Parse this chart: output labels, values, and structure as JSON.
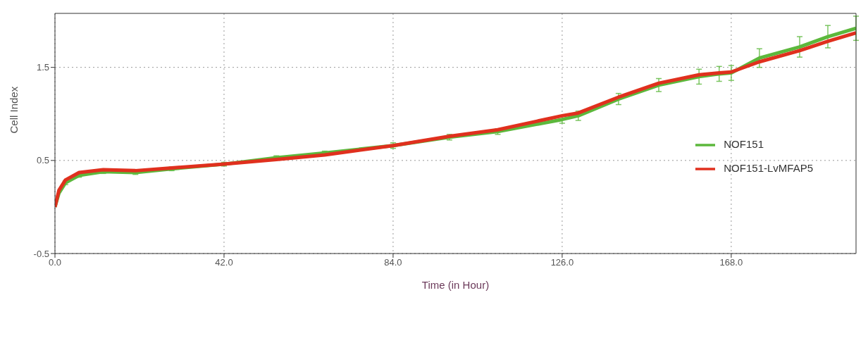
{
  "chart_data": {
    "type": "line",
    "xlabel": "Time (in Hour)",
    "ylabel": "Cell Index",
    "xlim": [
      0,
      199
    ],
    "ylim": [
      -0.5,
      2.08
    ],
    "xticks": [
      {
        "value": 0,
        "label": "0.0"
      },
      {
        "value": 42,
        "label": "42.0"
      },
      {
        "value": 84,
        "label": "84.0"
      },
      {
        "value": 126,
        "label": "126.0"
      },
      {
        "value": 168,
        "label": "168.0"
      }
    ],
    "yticks": [
      -0.5,
      0.5,
      1.5
    ],
    "grid": true,
    "legend": "right",
    "marker": "none",
    "line_style": "solid",
    "series": [
      {
        "name": "NOF151",
        "color": "#5cb83c",
        "x": [
          0,
          1,
          2.6,
          6,
          12,
          20,
          29,
          42,
          55,
          67,
          84,
          98,
          110,
          126,
          130,
          140,
          150,
          160,
          165,
          168,
          175,
          185,
          192,
          199
        ],
        "values": [
          0.0,
          0.15,
          0.26,
          0.34,
          0.38,
          0.37,
          0.41,
          0.46,
          0.53,
          0.58,
          0.66,
          0.75,
          0.81,
          0.94,
          0.98,
          1.16,
          1.31,
          1.4,
          1.43,
          1.44,
          1.6,
          1.72,
          1.83,
          1.92
        ],
        "errors": [
          null,
          null,
          0.02,
          0.02,
          0.02,
          0.02,
          0.02,
          0.02,
          0.02,
          0.02,
          0.03,
          0.03,
          0.03,
          0.04,
          0.05,
          0.06,
          0.07,
          0.08,
          0.08,
          0.08,
          0.1,
          0.11,
          0.12,
          0.13
        ]
      },
      {
        "name": "NOF151-LvMFAP5",
        "color": "#e0301e",
        "x": [
          0,
          1,
          2.6,
          6,
          12,
          20,
          29,
          42,
          55,
          67,
          84,
          98,
          110,
          126,
          130,
          140,
          150,
          160,
          165,
          168,
          175,
          185,
          192,
          199
        ],
        "values": [
          0.0,
          0.18,
          0.29,
          0.37,
          0.4,
          0.39,
          0.42,
          0.46,
          0.51,
          0.56,
          0.66,
          0.76,
          0.83,
          0.98,
          1.01,
          1.18,
          1.33,
          1.42,
          1.44,
          1.45,
          1.56,
          1.68,
          1.78,
          1.87
        ]
      }
    ]
  }
}
